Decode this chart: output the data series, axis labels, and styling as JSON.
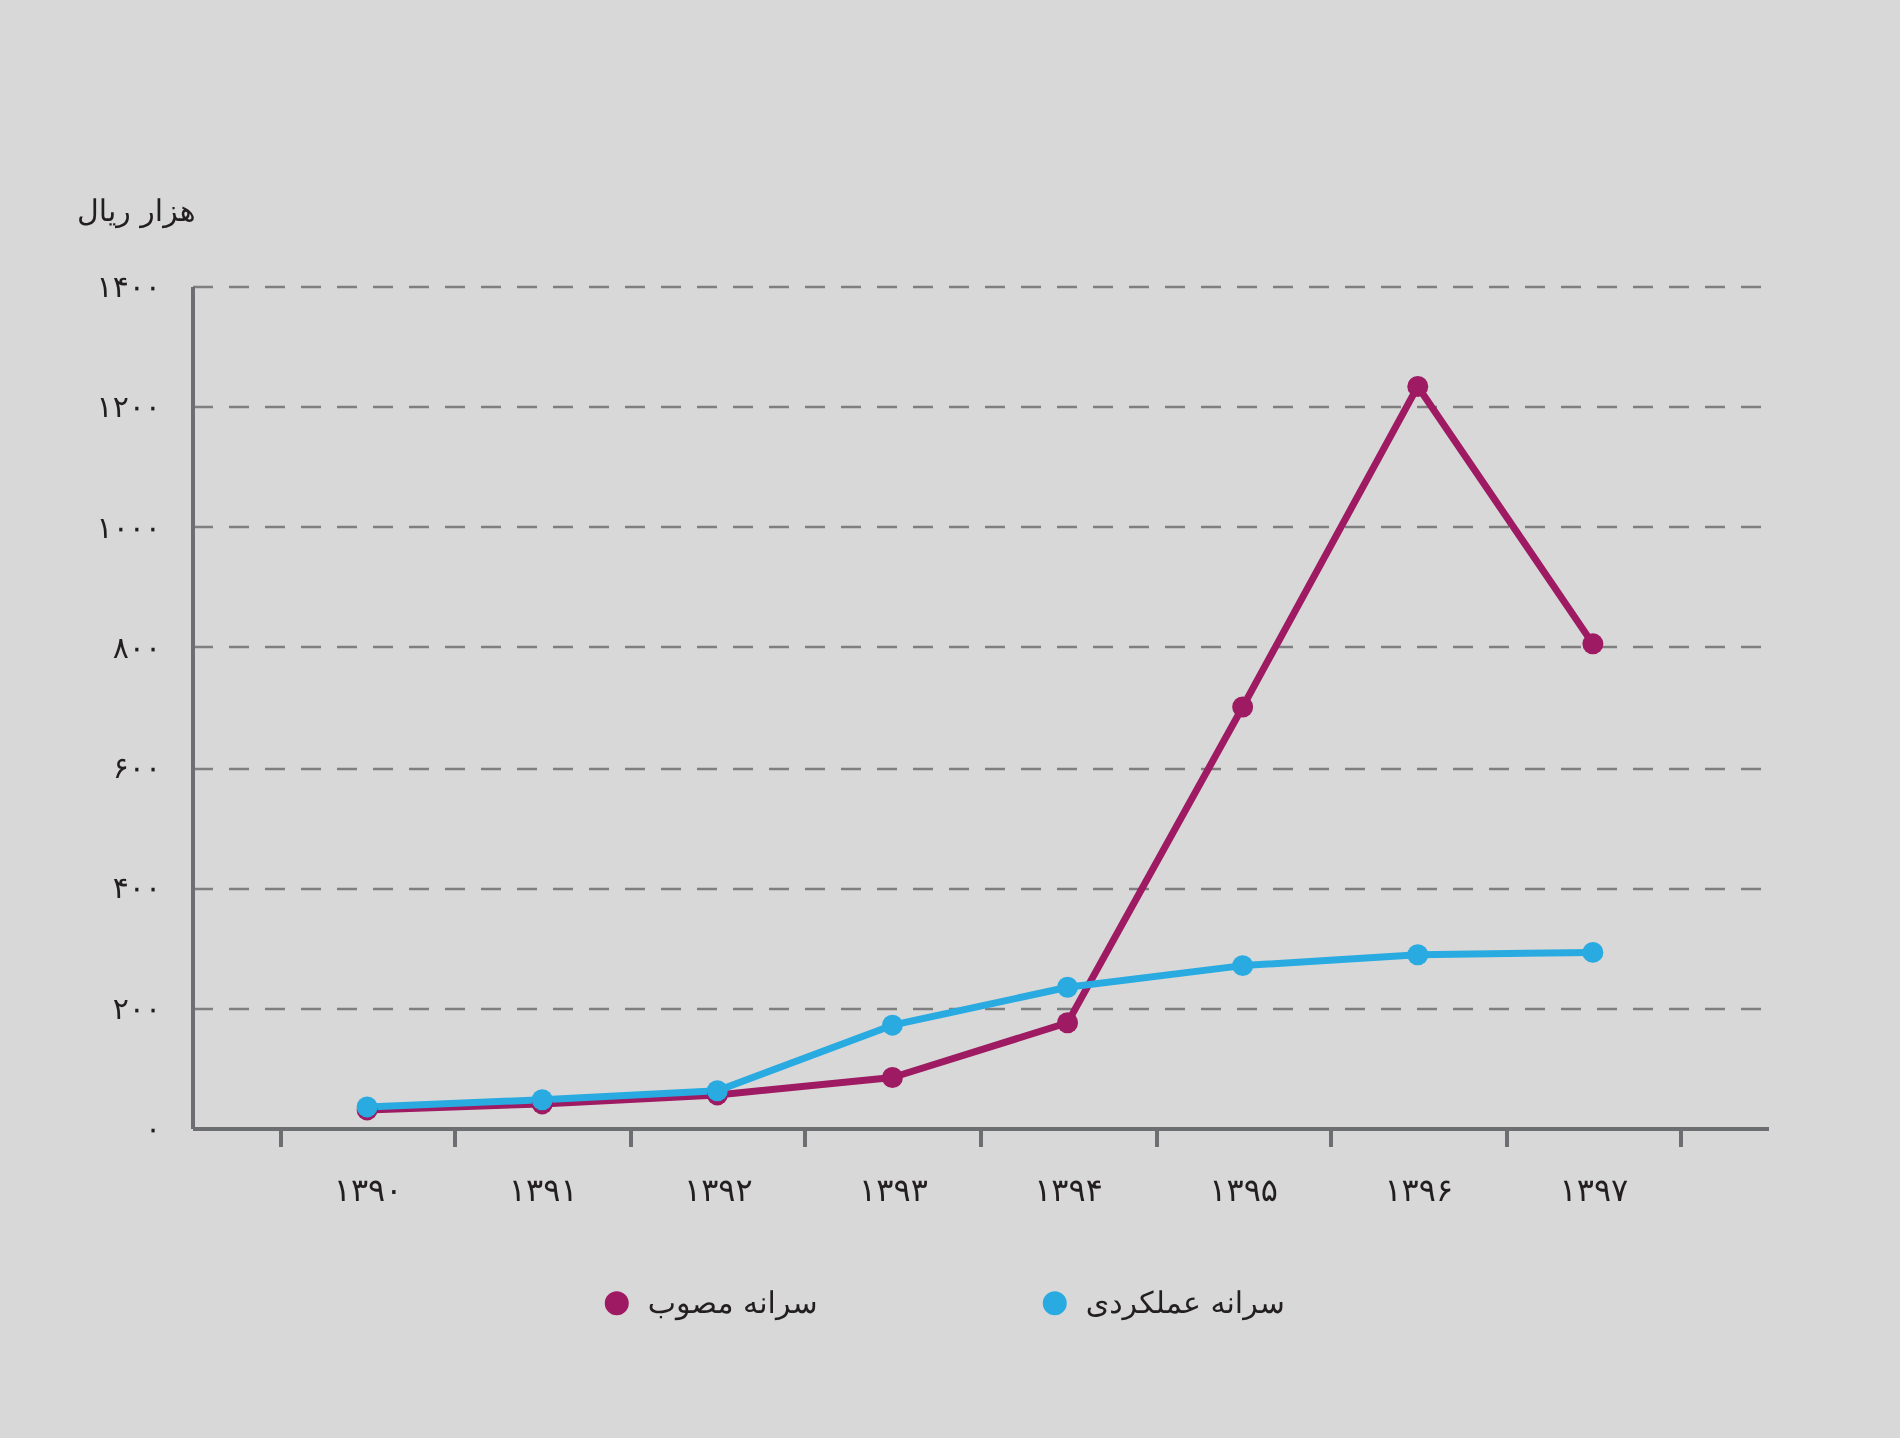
{
  "chart_data": {
    "type": "line",
    "ylabel": "هزار ریال",
    "categories": [
      "۱۳۹۰",
      "۱۳۹۱",
      "۱۳۹۲",
      "۱۳۹۳",
      "۱۳۹۴",
      "۱۳۹۵",
      "۱۳۹۶",
      "۱۳۹۷"
    ],
    "series": [
      {
        "name": "سرانه مصوب",
        "color": "#9e1a62",
        "values": [
          30,
          40,
          55,
          84,
          175,
          700,
          1233,
          805
        ]
      },
      {
        "name": "سرانه عملکردی",
        "color": "#29abe2",
        "values": [
          35,
          47,
          62,
          171,
          234,
          270,
          288,
          292
        ]
      }
    ],
    "ylim": [
      0,
      1400
    ],
    "yticks": [
      {
        "value": 0,
        "label": "۰"
      },
      {
        "value": 200,
        "label": "۲۰۰"
      },
      {
        "value": 400,
        "label": "۴۰۰"
      },
      {
        "value": 600,
        "label": "۶۰۰"
      },
      {
        "value": 800,
        "label": "۸۰۰"
      },
      {
        "value": 1000,
        "label": "۱۰۰۰"
      },
      {
        "value": 1200,
        "label": "۱۲۰۰"
      },
      {
        "value": 1400,
        "label": "۱۴۰۰"
      }
    ],
    "grid": "y",
    "legend": "bottom",
    "marker": "circle",
    "line_style": "solid"
  }
}
